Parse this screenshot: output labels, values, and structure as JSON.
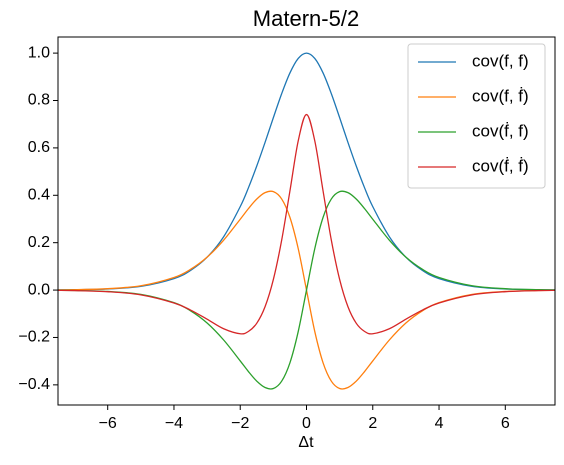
{
  "chart_data": {
    "type": "line",
    "title": "Matern-5/2",
    "x_label": "Δt",
    "x": [
      -7.5,
      -7,
      -6,
      -5,
      -4,
      -3.5,
      -3,
      -2.5,
      -2,
      -1.75,
      -1.5,
      -1.25,
      -1,
      -0.75,
      -0.5,
      -0.25,
      0,
      0.25,
      0.5,
      0.75,
      1,
      1.25,
      1.5,
      1.75,
      2,
      2.5,
      3,
      3.5,
      4,
      5,
      6,
      7,
      7.5
    ],
    "series": [
      {
        "name": "cov(f, f)",
        "color": "#1f77b4",
        "values": [
          0.0007,
          0.0014,
          0.0048,
          0.0156,
          0.0484,
          0.0829,
          0.1386,
          0.2252,
          0.3521,
          0.4326,
          0.5241,
          0.6236,
          0.7277,
          0.8286,
          0.9163,
          0.9775,
          1,
          0.9775,
          0.9163,
          0.8286,
          0.7277,
          0.6236,
          0.5241,
          0.4326,
          0.3521,
          0.2252,
          0.1386,
          0.0829,
          0.0484,
          0.0156,
          0.0048,
          0.0014,
          0.0007
        ]
      },
      {
        "name": "cov(f, ḟ)",
        "color": "#ff7f0e",
        "values": [
          0.0009,
          0.0017,
          0.0058,
          0.0181,
          0.0531,
          0.0874,
          0.1389,
          0.2107,
          0.299,
          0.3443,
          0.3844,
          0.4112,
          0.4155,
          0.3846,
          0.3068,
          0.1751,
          0,
          -0.1751,
          -0.3068,
          -0.3846,
          -0.4155,
          -0.4112,
          -0.3844,
          -0.3443,
          -0.299,
          -0.2107,
          -0.1389,
          -0.0874,
          -0.0531,
          -0.0181,
          -0.0058,
          -0.0017,
          -0.0009
        ]
      },
      {
        "name": "cov(ḟ, f)",
        "color": "#2ca02c",
        "values": [
          -0.0009,
          -0.0017,
          -0.0058,
          -0.0181,
          -0.0531,
          -0.0874,
          -0.1389,
          -0.2107,
          -0.299,
          -0.3443,
          -0.3844,
          -0.4112,
          -0.4155,
          -0.3846,
          -0.3068,
          -0.1751,
          0,
          0.1751,
          0.3068,
          0.3846,
          0.4155,
          0.4112,
          0.3844,
          0.3443,
          0.299,
          0.2107,
          0.1389,
          0.0874,
          0.0531,
          0.0181,
          0.0058,
          0.0017,
          0.0009
        ]
      },
      {
        "name": "cov(ḟ, ḟ)",
        "color": "#d62728",
        "values": [
          -0.0012,
          -0.0021,
          -0.0068,
          -0.0202,
          -0.0545,
          -0.0843,
          -0.1229,
          -0.1633,
          -0.1843,
          -0.1743,
          -0.1397,
          -0.0699,
          0.0448,
          0.2102,
          0.4183,
          0.6296,
          0.7407,
          0.6296,
          0.4183,
          0.2102,
          0.0448,
          -0.0699,
          -0.1397,
          -0.1743,
          -0.1843,
          -0.1633,
          -0.1229,
          -0.0843,
          -0.0545,
          -0.0202,
          -0.0068,
          -0.0021,
          -0.0012
        ]
      }
    ],
    "xlim": [
      -7.5,
      7.5
    ],
    "xticks": [
      {
        "value": -6,
        "label": "−6"
      },
      {
        "value": -4,
        "label": "−4"
      },
      {
        "value": -2,
        "label": "−2"
      },
      0,
      2,
      4,
      6
    ],
    "ylim": [
      -0.485,
      1.068
    ],
    "yticks": [
      {
        "value": -0.4,
        "label": "−0.4"
      },
      {
        "value": -0.2,
        "label": "−0.2"
      },
      {
        "value": 0,
        "label": "0.0"
      },
      0.2,
      0.4,
      0.6,
      0.8,
      {
        "value": 1,
        "label": "1.0"
      }
    ],
    "legend": "upper right",
    "grid": false
  }
}
